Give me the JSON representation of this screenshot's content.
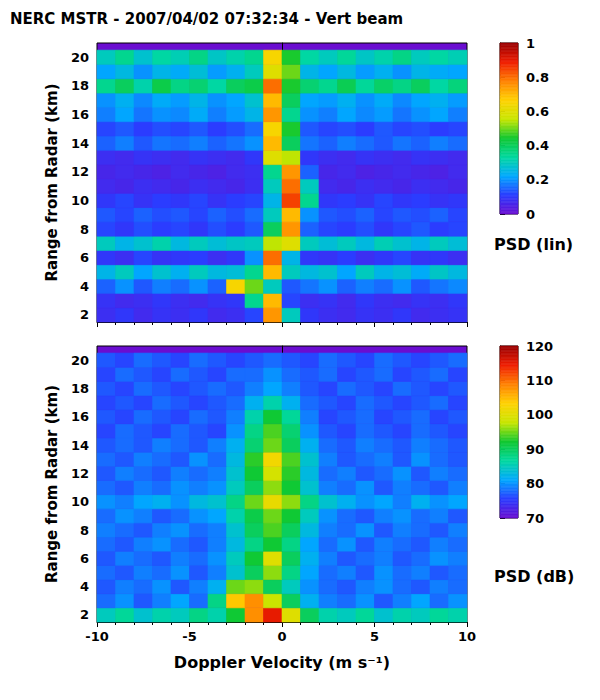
{
  "chart_data": [
    {
      "type": "heatmap",
      "title": "NERC MSTR - 2007/04/02 07:32:34 - Vert beam",
      "y_label": "Range from Radar (km)",
      "tick_labels": "y",
      "xlim": [
        -10,
        10
      ],
      "xticks": [
        -10,
        -5,
        0,
        5,
        10
      ],
      "ylim": [
        1.5,
        21
      ],
      "yticks": [
        2,
        4,
        6,
        8,
        10,
        12,
        14,
        16,
        18,
        20
      ],
      "x": [
        -9.5,
        -8.5,
        -7.5,
        -6.5,
        -5.5,
        -4.5,
        -3.5,
        -2.5,
        -1.5,
        -0.5,
        0.5,
        1.5,
        2.5,
        3.5,
        4.5,
        5.5,
        6.5,
        7.5,
        8.5,
        9.5
      ],
      "y": [
        2,
        3,
        4,
        5,
        6,
        7,
        8,
        9,
        10,
        11,
        12,
        13,
        14,
        15,
        16,
        17,
        18,
        19,
        20
      ],
      "z": [
        [
          0.08,
          0.1,
          0.07,
          0.09,
          0.08,
          0.1,
          0.07,
          0.08,
          0.12,
          0.75,
          0.3,
          0.1,
          0.08,
          0.07,
          0.09,
          0.08,
          0.1,
          0.07,
          0.08,
          0.09
        ],
        [
          0.09,
          0.07,
          0.08,
          0.1,
          0.08,
          0.07,
          0.09,
          0.1,
          0.35,
          0.7,
          0.12,
          0.08,
          0.09,
          0.07,
          0.1,
          0.08,
          0.07,
          0.09,
          0.08,
          0.1
        ],
        [
          0.15,
          0.2,
          0.14,
          0.18,
          0.16,
          0.2,
          0.15,
          0.65,
          0.5,
          0.3,
          0.14,
          0.17,
          0.2,
          0.15,
          0.18,
          0.16,
          0.2,
          0.14,
          0.17,
          0.19
        ],
        [
          0.25,
          0.3,
          0.22,
          0.28,
          0.24,
          0.3,
          0.26,
          0.27,
          0.35,
          0.7,
          0.3,
          0.26,
          0.28,
          0.22,
          0.3,
          0.25,
          0.27,
          0.23,
          0.29,
          0.26
        ],
        [
          0.1,
          0.08,
          0.12,
          0.09,
          0.1,
          0.11,
          0.08,
          0.1,
          0.2,
          0.8,
          0.25,
          0.1,
          0.09,
          0.11,
          0.08,
          0.1,
          0.12,
          0.09,
          0.1,
          0.08
        ],
        [
          0.3,
          0.25,
          0.28,
          0.32,
          0.26,
          0.3,
          0.27,
          0.29,
          0.3,
          0.55,
          0.6,
          0.3,
          0.27,
          0.3,
          0.26,
          0.31,
          0.28,
          0.25,
          0.3,
          0.27
        ],
        [
          0.12,
          0.1,
          0.13,
          0.11,
          0.12,
          0.1,
          0.13,
          0.11,
          0.14,
          0.4,
          0.75,
          0.15,
          0.12,
          0.11,
          0.13,
          0.1,
          0.12,
          0.14,
          0.11,
          0.12
        ],
        [
          0.14,
          0.12,
          0.15,
          0.13,
          0.14,
          0.12,
          0.15,
          0.13,
          0.16,
          0.3,
          0.7,
          0.2,
          0.14,
          0.13,
          0.15,
          0.12,
          0.14,
          0.13,
          0.15,
          0.12
        ],
        [
          0.1,
          0.12,
          0.09,
          0.11,
          0.1,
          0.12,
          0.09,
          0.11,
          0.12,
          0.25,
          0.85,
          0.35,
          0.1,
          0.11,
          0.09,
          0.12,
          0.1,
          0.11,
          0.09,
          0.1
        ],
        [
          0.07,
          0.06,
          0.08,
          0.07,
          0.06,
          0.08,
          0.07,
          0.06,
          0.08,
          0.3,
          0.8,
          0.3,
          0.07,
          0.06,
          0.08,
          0.07,
          0.06,
          0.08,
          0.07,
          0.06
        ],
        [
          0.06,
          0.07,
          0.06,
          0.05,
          0.07,
          0.06,
          0.05,
          0.07,
          0.08,
          0.35,
          0.75,
          0.15,
          0.06,
          0.07,
          0.05,
          0.06,
          0.07,
          0.06,
          0.05,
          0.07
        ],
        [
          0.08,
          0.07,
          0.09,
          0.08,
          0.07,
          0.09,
          0.08,
          0.07,
          0.1,
          0.6,
          0.55,
          0.1,
          0.08,
          0.07,
          0.09,
          0.08,
          0.07,
          0.09,
          0.08,
          0.07
        ],
        [
          0.15,
          0.18,
          0.14,
          0.17,
          0.16,
          0.18,
          0.15,
          0.17,
          0.2,
          0.7,
          0.4,
          0.17,
          0.15,
          0.18,
          0.16,
          0.14,
          0.17,
          0.15,
          0.18,
          0.16
        ],
        [
          0.12,
          0.14,
          0.11,
          0.13,
          0.12,
          0.14,
          0.11,
          0.13,
          0.16,
          0.65,
          0.45,
          0.14,
          0.12,
          0.13,
          0.11,
          0.14,
          0.12,
          0.13,
          0.11,
          0.12
        ],
        [
          0.18,
          0.22,
          0.17,
          0.2,
          0.19,
          0.23,
          0.18,
          0.21,
          0.25,
          0.75,
          0.35,
          0.2,
          0.18,
          0.22,
          0.19,
          0.21,
          0.17,
          0.2,
          0.22,
          0.18
        ],
        [
          0.2,
          0.24,
          0.19,
          0.23,
          0.21,
          0.25,
          0.2,
          0.22,
          0.28,
          0.7,
          0.4,
          0.22,
          0.21,
          0.24,
          0.2,
          0.23,
          0.19,
          0.22,
          0.24,
          0.21
        ],
        [
          0.35,
          0.4,
          0.32,
          0.42,
          0.36,
          0.38,
          0.33,
          0.4,
          0.42,
          0.8,
          0.45,
          0.38,
          0.35,
          0.41,
          0.34,
          0.39,
          0.36,
          0.4,
          0.33,
          0.37
        ],
        [
          0.22,
          0.26,
          0.2,
          0.25,
          0.23,
          0.27,
          0.21,
          0.24,
          0.3,
          0.6,
          0.5,
          0.25,
          0.22,
          0.26,
          0.21,
          0.24,
          0.2,
          0.25,
          0.23,
          0.22
        ],
        [
          0.3,
          0.35,
          0.28,
          0.33,
          0.31,
          0.36,
          0.29,
          0.32,
          0.35,
          0.65,
          0.45,
          0.33,
          0.3,
          0.34,
          0.29,
          0.32,
          0.36,
          0.3,
          0.33,
          0.31
        ]
      ],
      "colorbar": {
        "label": "PSD (lin)",
        "lim": [
          0,
          1
        ],
        "ticks": [
          0,
          0.2,
          0.4,
          0.6,
          0.8,
          1
        ]
      }
    },
    {
      "type": "heatmap",
      "x_label": "Doppler Velocity (m s⁻¹)",
      "y_label": "Range from Radar (km)",
      "xlim": [
        -10,
        10
      ],
      "xticks": [
        -10,
        -5,
        0,
        5,
        10
      ],
      "ylim": [
        1.5,
        21
      ],
      "yticks": [
        2,
        4,
        6,
        8,
        10,
        12,
        14,
        16,
        18,
        20
      ],
      "x": [
        -9.5,
        -8.5,
        -7.5,
        -6.5,
        -5.5,
        -4.5,
        -3.5,
        -2.5,
        -1.5,
        -0.5,
        0.5,
        1.5,
        2.5,
        3.5,
        4.5,
        5.5,
        6.5,
        7.5,
        8.5,
        9.5
      ],
      "y": [
        2,
        3,
        4,
        5,
        6,
        7,
        8,
        9,
        10,
        11,
        12,
        13,
        14,
        15,
        16,
        17,
        18,
        19,
        20
      ],
      "z": [
        [
          85,
          87,
          84,
          86,
          85,
          88,
          86,
          92,
          108,
          115,
          100,
          90,
          86,
          85,
          87,
          84,
          86,
          85,
          87,
          86
        ],
        [
          78,
          80,
          77,
          79,
          81,
          78,
          88,
          104,
          108,
          98,
          90,
          82,
          79,
          78,
          80,
          77,
          79,
          81,
          78,
          80
        ],
        [
          77,
          79,
          78,
          80,
          77,
          79,
          82,
          95,
          96,
          90,
          85,
          80,
          78,
          77,
          79,
          80,
          78,
          77,
          79,
          78
        ],
        [
          78,
          77,
          79,
          78,
          80,
          77,
          79,
          84,
          90,
          96,
          88,
          81,
          78,
          79,
          77,
          80,
          78,
          79,
          77,
          78
        ],
        [
          77,
          79,
          78,
          77,
          79,
          78,
          80,
          85,
          92,
          100,
          90,
          82,
          79,
          77,
          78,
          79,
          77,
          78,
          80,
          79
        ],
        [
          78,
          77,
          79,
          80,
          78,
          77,
          79,
          83,
          88,
          92,
          88,
          81,
          78,
          80,
          77,
          79,
          78,
          77,
          79,
          78
        ],
        [
          79,
          78,
          77,
          79,
          80,
          78,
          79,
          84,
          90,
          94,
          90,
          83,
          79,
          78,
          80,
          77,
          79,
          78,
          77,
          79
        ],
        [
          78,
          80,
          79,
          77,
          78,
          80,
          81,
          86,
          91,
          95,
          92,
          85,
          80,
          78,
          77,
          79,
          80,
          78,
          79,
          77
        ],
        [
          80,
          79,
          81,
          82,
          80,
          83,
          84,
          88,
          95,
          101,
          96,
          88,
          84,
          82,
          80,
          81,
          79,
          82,
          80,
          81
        ],
        [
          78,
          77,
          79,
          78,
          80,
          79,
          80,
          85,
          90,
          96,
          92,
          84,
          79,
          78,
          80,
          77,
          79,
          78,
          77,
          79
        ],
        [
          77,
          79,
          78,
          77,
          79,
          78,
          79,
          84,
          92,
          99,
          93,
          83,
          78,
          79,
          77,
          78,
          80,
          77,
          79,
          78
        ],
        [
          78,
          77,
          79,
          78,
          77,
          80,
          78,
          83,
          93,
          102,
          94,
          84,
          79,
          77,
          78,
          79,
          77,
          80,
          78,
          77
        ],
        [
          77,
          78,
          77,
          79,
          78,
          77,
          79,
          82,
          89,
          95,
          90,
          82,
          78,
          77,
          79,
          78,
          77,
          79,
          78,
          77
        ],
        [
          76,
          78,
          77,
          76,
          78,
          77,
          76,
          80,
          88,
          94,
          89,
          80,
          77,
          76,
          78,
          77,
          76,
          78,
          77,
          76
        ],
        [
          77,
          76,
          78,
          77,
          76,
          78,
          77,
          79,
          86,
          92,
          87,
          79,
          76,
          77,
          78,
          76,
          77,
          78,
          76,
          77
        ],
        [
          76,
          77,
          76,
          78,
          77,
          76,
          77,
          78,
          82,
          86,
          82,
          78,
          77,
          76,
          78,
          77,
          76,
          77,
          78,
          76
        ],
        [
          77,
          76,
          78,
          77,
          76,
          77,
          78,
          77,
          79,
          81,
          79,
          77,
          76,
          78,
          77,
          76,
          78,
          77,
          76,
          77
        ],
        [
          76,
          78,
          77,
          76,
          78,
          77,
          76,
          78,
          78,
          80,
          78,
          77,
          78,
          76,
          77,
          78,
          76,
          77,
          78,
          76
        ],
        [
          77,
          76,
          78,
          77,
          76,
          78,
          77,
          76,
          77,
          78,
          77,
          76,
          78,
          77,
          76,
          78,
          77,
          76,
          77,
          78
        ]
      ],
      "colorbar": {
        "label": "PSD (dB)",
        "lim": [
          70,
          120
        ],
        "ticks": [
          70,
          80,
          90,
          100,
          110,
          120
        ]
      }
    }
  ]
}
